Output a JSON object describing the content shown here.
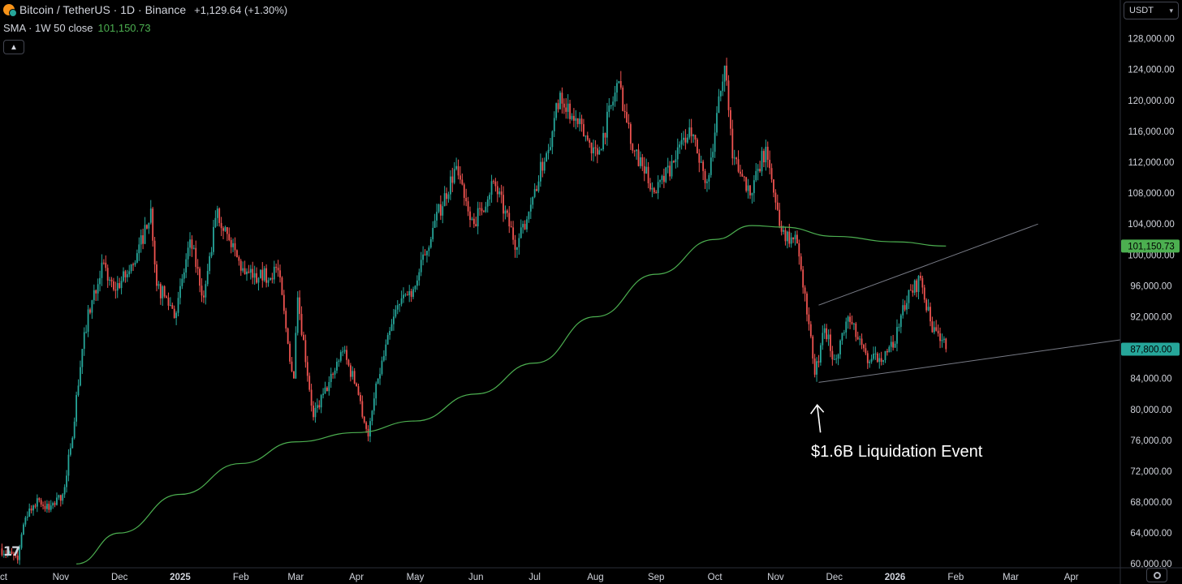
{
  "header": {
    "symbol": "Bitcoin / TetherUS · 1D · Binance",
    "change": "+1,129.64 (+1.30%)",
    "symbol_icon": "bitcoin-tether-icon"
  },
  "indicator": {
    "label": "SMA · 1W 50 close",
    "value": "101,150.73"
  },
  "toolbar": {
    "collapse_icon": "chevron-up-icon",
    "currency": "USDT",
    "settings_icon": "gear-icon"
  },
  "annotation": {
    "text": "$1.6B Liquidation Event",
    "icon": "arrow-up-icon"
  },
  "logo_text": "17",
  "colors": {
    "up": "#26a69a",
    "down": "#ef5350",
    "sma": "#4caf50",
    "trendline": "#787b86",
    "background": "#000000"
  },
  "chart_data": {
    "type": "candlestick",
    "title": "Bitcoin / TetherUS · 1D · Binance",
    "y_ticks": [
      "128,000.00",
      "124,000.00",
      "120,000.00",
      "116,000.00",
      "112,000.00",
      "108,000.00",
      "104,000.00",
      "100,000.00",
      "96,000.00",
      "92,000.00",
      "88,000.00",
      "84,000.00",
      "80,000.00",
      "76,000.00",
      "72,000.00",
      "68,000.00",
      "64,000.00",
      "60,000.00"
    ],
    "y_tick_values": [
      128000,
      124000,
      120000,
      116000,
      112000,
      108000,
      104000,
      100000,
      96000,
      92000,
      88000,
      84000,
      80000,
      76000,
      72000,
      68000,
      64000,
      60000
    ],
    "ylim": [
      59500,
      133000
    ],
    "x_range": [
      "2024-10-01",
      "2026-04-26"
    ],
    "x_ticks": [
      {
        "label": "Oct",
        "date": "2024-10-01"
      },
      {
        "label": "Nov",
        "date": "2024-11-01"
      },
      {
        "label": "Dec",
        "date": "2024-12-01"
      },
      {
        "label": "2025",
        "date": "2025-01-01"
      },
      {
        "label": "Feb",
        "date": "2025-02-01"
      },
      {
        "label": "Mar",
        "date": "2025-03-01"
      },
      {
        "label": "Apr",
        "date": "2025-04-01"
      },
      {
        "label": "May",
        "date": "2025-05-01"
      },
      {
        "label": "Jun",
        "date": "2025-06-01"
      },
      {
        "label": "Jul",
        "date": "2025-07-01"
      },
      {
        "label": "Aug",
        "date": "2025-08-01"
      },
      {
        "label": "Sep",
        "date": "2025-09-01"
      },
      {
        "label": "Oct",
        "date": "2025-10-01"
      },
      {
        "label": "Nov",
        "date": "2025-11-01"
      },
      {
        "label": "Dec",
        "date": "2025-12-01"
      },
      {
        "label": "2026",
        "date": "2026-01-01"
      },
      {
        "label": "Feb",
        "date": "2026-02-01"
      },
      {
        "label": "Mar",
        "date": "2026-03-01"
      },
      {
        "label": "Apr",
        "date": "2026-04-01"
      }
    ],
    "price_path": [
      [
        "2024-10-01",
        62000
      ],
      [
        "2024-10-10",
        60500
      ],
      [
        "2024-10-14",
        66000
      ],
      [
        "2024-10-20",
        68500
      ],
      [
        "2024-10-26",
        67000
      ],
      [
        "2024-11-02",
        69000
      ],
      [
        "2024-11-06",
        75000
      ],
      [
        "2024-11-13",
        90000
      ],
      [
        "2024-11-22",
        99000
      ],
      [
        "2024-11-28",
        95500
      ],
      [
        "2024-12-05",
        97500
      ],
      [
        "2024-12-09",
        99000
      ],
      [
        "2024-12-17",
        106000
      ],
      [
        "2024-12-20",
        96000
      ],
      [
        "2024-12-30",
        92500
      ],
      [
        "2025-01-06",
        102000
      ],
      [
        "2025-01-13",
        94500
      ],
      [
        "2025-01-20",
        106000
      ],
      [
        "2025-01-27",
        101000
      ],
      [
        "2025-02-03",
        97500
      ],
      [
        "2025-02-10",
        97000
      ],
      [
        "2025-02-20",
        98000
      ],
      [
        "2025-02-25",
        88500
      ],
      [
        "2025-02-28",
        84000
      ],
      [
        "2025-03-02",
        94500
      ],
      [
        "2025-03-10",
        79000
      ],
      [
        "2025-03-20",
        84500
      ],
      [
        "2025-03-25",
        87500
      ],
      [
        "2025-04-01",
        83000
      ],
      [
        "2025-04-07",
        76500
      ],
      [
        "2025-04-12",
        84000
      ],
      [
        "2025-04-22",
        93500
      ],
      [
        "2025-05-01",
        96000
      ],
      [
        "2025-05-10",
        103500
      ],
      [
        "2025-05-22",
        111500
      ],
      [
        "2025-05-31",
        104000
      ],
      [
        "2025-06-10",
        109500
      ],
      [
        "2025-06-22",
        101000
      ],
      [
        "2025-06-30",
        107500
      ],
      [
        "2025-07-10",
        116000
      ],
      [
        "2025-07-14",
        121000
      ],
      [
        "2025-07-20",
        118000
      ],
      [
        "2025-08-02",
        113000
      ],
      [
        "2025-08-13",
        122500
      ],
      [
        "2025-08-20",
        113500
      ],
      [
        "2025-09-01",
        108000
      ],
      [
        "2025-09-10",
        112000
      ],
      [
        "2025-09-18",
        116500
      ],
      [
        "2025-09-27",
        109500
      ],
      [
        "2025-10-06",
        124500
      ],
      [
        "2025-10-10",
        112500
      ],
      [
        "2025-10-14",
        110500
      ],
      [
        "2025-10-20",
        108000
      ],
      [
        "2025-10-27",
        114000
      ],
      [
        "2025-11-04",
        103000
      ],
      [
        "2025-11-12",
        101500
      ],
      [
        "2025-11-16",
        95000
      ],
      [
        "2025-11-21",
        84500
      ],
      [
        "2025-11-26",
        90500
      ],
      [
        "2025-12-01",
        86500
      ],
      [
        "2025-12-08",
        92000
      ],
      [
        "2025-12-18",
        86000
      ],
      [
        "2025-12-31",
        88000
      ],
      [
        "2026-01-05",
        93500
      ],
      [
        "2026-01-14",
        97000
      ],
      [
        "2026-01-20",
        90000
      ],
      [
        "2026-01-25",
        89000
      ],
      [
        "2026-01-27",
        87800
      ]
    ],
    "sma": {
      "name": "SMA · 1W 50 close",
      "points": [
        [
          "2024-11-09",
          60000
        ],
        [
          "2024-12-01",
          64000
        ],
        [
          "2025-01-01",
          69000
        ],
        [
          "2025-02-01",
          73000
        ],
        [
          "2025-03-01",
          75800
        ],
        [
          "2025-04-01",
          77000
        ],
        [
          "2025-05-01",
          78500
        ],
        [
          "2025-06-01",
          82000
        ],
        [
          "2025-07-01",
          86000
        ],
        [
          "2025-08-01",
          92000
        ],
        [
          "2025-09-01",
          97500
        ],
        [
          "2025-10-01",
          102000
        ],
        [
          "2025-10-20",
          103800
        ],
        [
          "2025-11-05",
          103600
        ],
        [
          "2025-12-01",
          102400
        ],
        [
          "2026-01-01",
          101700
        ],
        [
          "2026-01-27",
          101150.73
        ]
      ],
      "last_value": 101150.73
    },
    "current_price": 87800.0,
    "trendlines": [
      {
        "points": [
          [
            "2025-11-23",
            93500
          ],
          [
            "2026-03-15",
            104000
          ]
        ]
      },
      {
        "points": [
          [
            "2025-11-23",
            83500
          ],
          [
            "2026-04-26",
            89000
          ]
        ]
      }
    ],
    "annotation": {
      "text": "$1.6B Liquidation Event",
      "point": [
        "2025-11-21",
        81000
      ]
    }
  }
}
